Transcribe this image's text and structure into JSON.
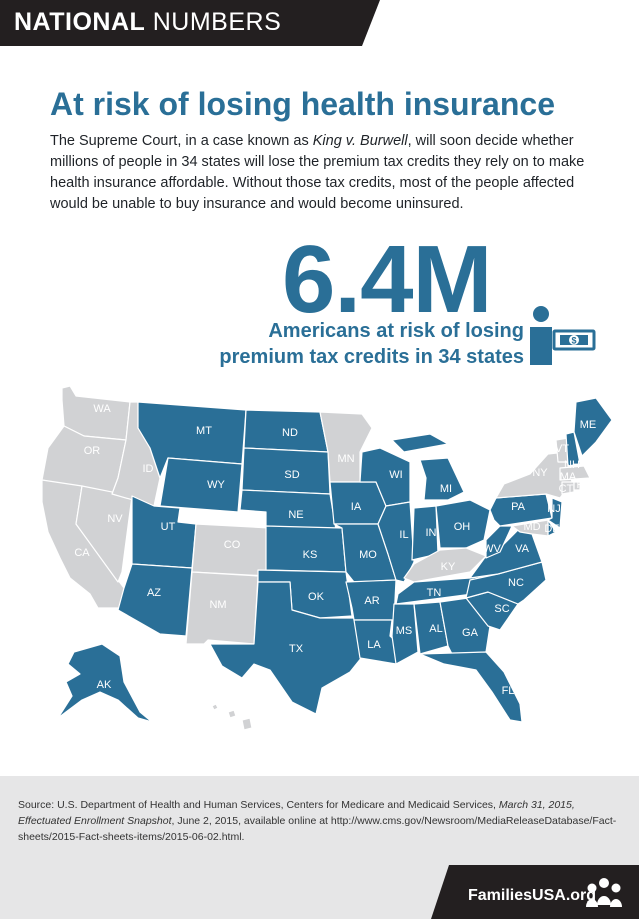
{
  "header": {
    "bold": "NATIONAL",
    "light": "NUMBERS"
  },
  "title": "At risk of losing health insurance",
  "intro": {
    "part1": "The Supreme Court, in a case known as ",
    "case_name": "King v. Burwell",
    "part2": ", will soon decide whether millions of people in 34 states will lose the premium tax credits they rely on to make health insurance affordable. Without those tax credits, most of the people affected would be unable to buy insurance and would become uninsured."
  },
  "stat": {
    "value": "6.4M",
    "line1": "Americans at risk of losing",
    "line2": "premium tax credits in 34 states",
    "icon": "person-with-dollar-bill-icon",
    "dollar_sign": "$"
  },
  "colors": {
    "accent": "#2a6f97",
    "dark": "#231f20",
    "gray_state": "#d1d2d4",
    "footer_bg": "#e6e6e7"
  },
  "map": {
    "at_risk_states": [
      "MT",
      "ND",
      "SD",
      "WY",
      "NE",
      "UT",
      "KS",
      "AZ",
      "OK",
      "TX",
      "IA",
      "MO",
      "AR",
      "LA",
      "WI",
      "IL",
      "MI",
      "IN",
      "OH",
      "TN",
      "MS",
      "AL",
      "GA",
      "FL",
      "SC",
      "NC",
      "VA",
      "WV",
      "PA",
      "NJ",
      "DE",
      "ME",
      "NH",
      "AK"
    ],
    "labels": {
      "WA": "WA",
      "OR": "OR",
      "ID": "ID",
      "MT": "MT",
      "ND": "ND",
      "MN": "MN",
      "SD": "SD",
      "WY": "WY",
      "NV": "NV",
      "CA": "CA",
      "UT": "UT",
      "CO": "CO",
      "NE": "NE",
      "IA": "IA",
      "WI": "WI",
      "MI": "MI",
      "IL": "IL",
      "IN": "IN",
      "OH": "OH",
      "PA": "PA",
      "NY": "NY",
      "KS": "KS",
      "MO": "MO",
      "KY": "KY",
      "WV": "WV",
      "VA": "VA",
      "AZ": "AZ",
      "NM": "NM",
      "OK": "OK",
      "AR": "AR",
      "TN": "TN",
      "NC": "NC",
      "SC": "SC",
      "TX": "TX",
      "LA": "LA",
      "MS": "MS",
      "AL": "AL",
      "GA": "GA",
      "FL": "FL",
      "AK": "AK",
      "ME": "ME",
      "NH": "NH",
      "VT": "VT",
      "MA": "MA",
      "CT": "CT",
      "RI": "RI",
      "NJ": "NJ",
      "DE": "DE",
      "MD": "MD"
    }
  },
  "source": {
    "p1": "Source: U.S. Department of Health and Human Services, Centers for Medicare and Medicaid Services, ",
    "italic": "March 31, 2015, Effectuated Enrollment Snapshot",
    "p2": ", June 2, 2015, available online at http://www.cms.gov/Newsroom/MediaReleaseDatabase/Fact-sheets/2015-Fact-sheets-items/2015-06-02.html."
  },
  "brand": {
    "text": "FamiliesUSA.org",
    "icon": "families-logo-icon"
  }
}
